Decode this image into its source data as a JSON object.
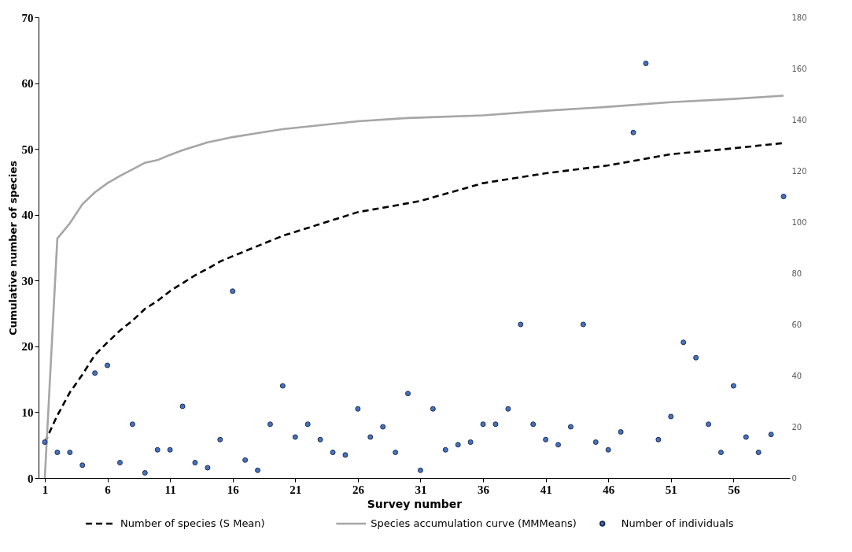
{
  "chart_data": {
    "type": "line",
    "xlabel": "Survey number",
    "ylabel": "Cumulative number of species",
    "xlim": [
      0.5,
      60.5
    ],
    "xticks": [
      1,
      6,
      11,
      16,
      21,
      26,
      31,
      36,
      41,
      46,
      51,
      56
    ],
    "ylim": [
      0,
      70
    ],
    "yticks": [
      0,
      10,
      20,
      30,
      40,
      50,
      60,
      70
    ],
    "y2lim": [
      0,
      180
    ],
    "y2ticks": [
      0,
      20,
      40,
      60,
      80,
      100,
      120,
      140,
      160,
      180
    ],
    "grid": false,
    "legend": "bottom",
    "series": [
      {
        "name": "Number of species (S Mean)",
        "color": "#000000",
        "line_style": "dashed",
        "marker": "none",
        "x": [
          1,
          2,
          3,
          4,
          5,
          6,
          7,
          8,
          9,
          10,
          11,
          12,
          13,
          14,
          15,
          16,
          20,
          26,
          29,
          31,
          36,
          41,
          46,
          51,
          56,
          60
        ],
        "values": [
          5.4,
          9.5,
          13,
          15.7,
          18.7,
          20.6,
          22.4,
          23.9,
          25.7,
          26.9,
          28.4,
          29.6,
          30.8,
          31.8,
          32.9,
          33.7,
          36.8,
          40.4,
          41.4,
          42.1,
          44.8,
          46.3,
          47.5,
          49.2,
          50.1,
          50.9
        ]
      },
      {
        "name": "Species accumulation curve (MMMeans)",
        "color": "#a6a6a6",
        "line_style": "solid",
        "marker": "none",
        "x": [
          1,
          2,
          3,
          4,
          5,
          6,
          7,
          8,
          9,
          10,
          11,
          12,
          13,
          14,
          15,
          16,
          18,
          20,
          23,
          26,
          30,
          36,
          41,
          46,
          51,
          56,
          60
        ],
        "values": [
          0,
          36.4,
          38.7,
          41.6,
          43.4,
          44.8,
          45.9,
          46.9,
          47.9,
          48.3,
          49.1,
          49.8,
          50.4,
          51,
          51.4,
          51.8,
          52.4,
          53,
          53.6,
          54.2,
          54.7,
          55.1,
          55.8,
          56.4,
          57.1,
          57.6,
          58.1
        ]
      },
      {
        "name": "Number of individuals",
        "type": "scatter",
        "axis": "y2",
        "color": "#4472c4",
        "marker": "circle",
        "x": [
          1,
          2,
          3,
          4,
          5,
          6,
          7,
          8,
          9,
          10,
          11,
          12,
          13,
          14,
          15,
          16,
          17,
          18,
          19,
          20,
          21,
          22,
          23,
          24,
          25,
          26,
          27,
          28,
          29,
          30,
          31,
          32,
          33,
          34,
          35,
          36,
          37,
          38,
          39,
          40,
          41,
          42,
          43,
          44,
          45,
          46,
          47,
          48,
          49,
          50,
          51,
          52,
          53,
          54,
          55,
          56,
          57,
          58,
          59,
          60
        ],
        "values": [
          14,
          10,
          10,
          5,
          41,
          44,
          6,
          21,
          2,
          11,
          11,
          28,
          6,
          4,
          15,
          73,
          7,
          3,
          21,
          36,
          16,
          21,
          15,
          10,
          9,
          27,
          16,
          20,
          10,
          33,
          3,
          27,
          11,
          13,
          14,
          21,
          21,
          27,
          60,
          21,
          15,
          13,
          20,
          60,
          14,
          11,
          18,
          135,
          162,
          15,
          24,
          53,
          47,
          21,
          10,
          36,
          16,
          10,
          17,
          110
        ]
      }
    ]
  }
}
